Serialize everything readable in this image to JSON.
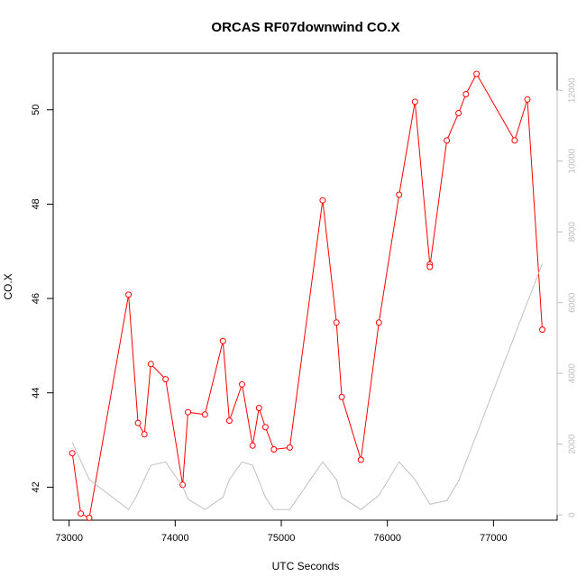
{
  "chart_data": {
    "type": "line",
    "title": "ORCAS RF07downwind CO.X",
    "xlabel": "UTC Seconds",
    "ylabel": "CO.X",
    "xlim": [
      72850,
      77600
    ],
    "ylim": [
      41.3,
      51.2
    ],
    "y2lim": [
      -150,
      13050
    ],
    "grid": false,
    "x_ticks": [
      73000,
      74000,
      75000,
      76000,
      77000
    ],
    "x_tick_labels": [
      "73000",
      "74000",
      "75000",
      "76000",
      "77000"
    ],
    "y_ticks": [
      42,
      44,
      46,
      48,
      50
    ],
    "y_tick_labels": [
      "42",
      "44",
      "46",
      "48",
      "50"
    ],
    "y2_ticks": [
      0,
      2000,
      4000,
      6000,
      8000,
      10000,
      12000
    ],
    "y2_tick_labels": [
      "0",
      "2000",
      "4000",
      "6000",
      "8000",
      "10000",
      "12000"
    ],
    "series": [
      {
        "axis": "left",
        "color": "#ff0000",
        "marker": "open-circle",
        "x": [
          73030,
          73110,
          73190,
          73560,
          73650,
          73710,
          73770,
          73910,
          74070,
          74120,
          74280,
          74450,
          74510,
          74630,
          74730,
          74790,
          74850,
          74930,
          75080,
          75390,
          75520,
          75570,
          75750,
          75920,
          76110,
          76260,
          76400,
          76400,
          76560,
          76670,
          76740,
          76840,
          77200,
          77320,
          77460
        ],
        "values": [
          42.72,
          41.44,
          41.35,
          46.08,
          43.36,
          43.12,
          44.61,
          44.29,
          42.05,
          43.59,
          43.54,
          45.1,
          43.41,
          44.18,
          42.88,
          43.68,
          43.27,
          42.8,
          42.84,
          48.08,
          45.49,
          43.91,
          42.58,
          45.49,
          48.2,
          50.17,
          46.72,
          46.67,
          49.35,
          49.93,
          50.33,
          50.76,
          49.35,
          50.22,
          45.34
        ]
      },
      {
        "axis": "right",
        "color": "#c0c0c0",
        "marker": "none",
        "x": [
          73030,
          73190,
          73560,
          73630,
          73770,
          73910,
          74070,
          74120,
          74280,
          74450,
          74510,
          74630,
          74730,
          74850,
          74930,
          75080,
          75390,
          75520,
          75570,
          75750,
          75920,
          76110,
          76260,
          76400,
          76560,
          76670,
          77460
        ],
        "values": [
          2050,
          1000,
          150,
          500,
          1400,
          1500,
          800,
          450,
          150,
          500,
          1000,
          1500,
          1400,
          500,
          150,
          150,
          1500,
          1000,
          500,
          150,
          550,
          1500,
          1000,
          300,
          400,
          950,
          7100
        ]
      }
    ]
  }
}
